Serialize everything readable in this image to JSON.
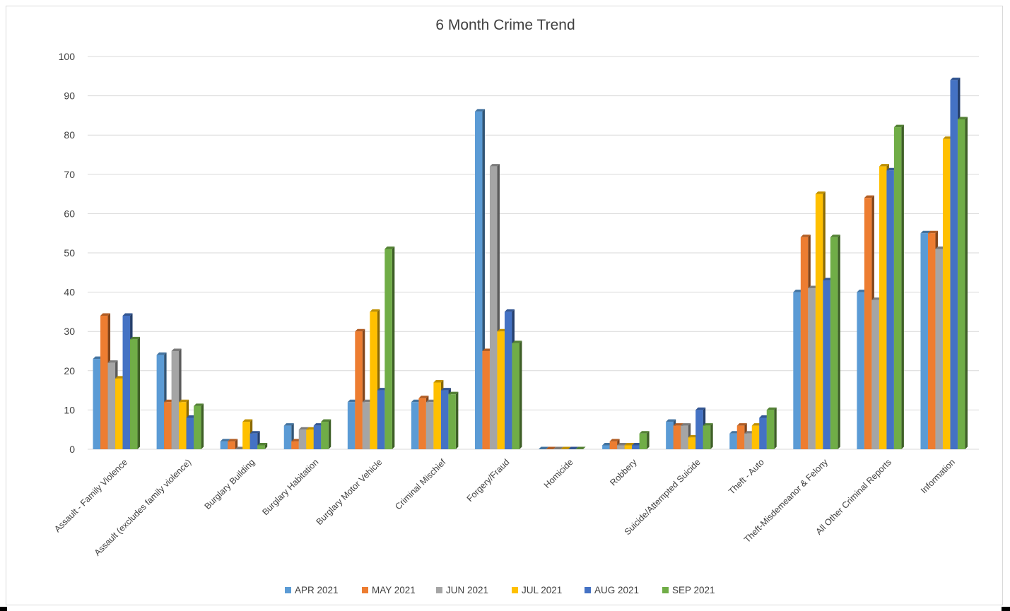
{
  "chart_data": {
    "type": "bar",
    "title": "6 Month Crime Trend",
    "xlabel": "",
    "ylabel": "",
    "ylim": [
      0,
      100
    ],
    "yticks": [
      0,
      10,
      20,
      30,
      40,
      50,
      60,
      70,
      80,
      90,
      100
    ],
    "grid": true,
    "legend_position": "bottom",
    "categories": [
      "Assault - Family Violence",
      "Assault (excludes family violence)",
      "Burglary Building",
      "Burglary Habitation",
      "Burglary Motor Vehicle",
      "Criminal Mischief",
      "Forgery/Fraud",
      "Homicide",
      "Robbery",
      "Suicide/Attempted Suicide",
      "Theft - Auto",
      "Theft-Misdemeanor &  Felony",
      "All Other Criminal Reports",
      "Information"
    ],
    "series": [
      {
        "name": "APR 2021",
        "color": "#5b9bd5",
        "values": [
          23,
          24,
          2,
          6,
          12,
          12,
          86,
          0,
          1,
          7,
          4,
          40,
          40,
          55
        ]
      },
      {
        "name": "MAY 2021",
        "color": "#ed7d31",
        "values": [
          34,
          12,
          2,
          2,
          30,
          13,
          25,
          0,
          2,
          6,
          6,
          54,
          64,
          55
        ]
      },
      {
        "name": "JUN 2021",
        "color": "#a5a5a5",
        "values": [
          22,
          25,
          0,
          5,
          12,
          12,
          72,
          0,
          1,
          6,
          4,
          41,
          38,
          51
        ]
      },
      {
        "name": "JUL 2021",
        "color": "#ffc000",
        "values": [
          18,
          12,
          7,
          5,
          35,
          17,
          30,
          0,
          1,
          3,
          6,
          65,
          72,
          79
        ]
      },
      {
        "name": "AUG 2021",
        "color": "#4472c4",
        "values": [
          34,
          8,
          4,
          6,
          15,
          15,
          35,
          0,
          1,
          10,
          8,
          43,
          71,
          94
        ]
      },
      {
        "name": "SEP 2021",
        "color": "#70ad47",
        "values": [
          28,
          11,
          1,
          7,
          51,
          14,
          27,
          0,
          4,
          6,
          10,
          54,
          82,
          84
        ]
      }
    ]
  }
}
